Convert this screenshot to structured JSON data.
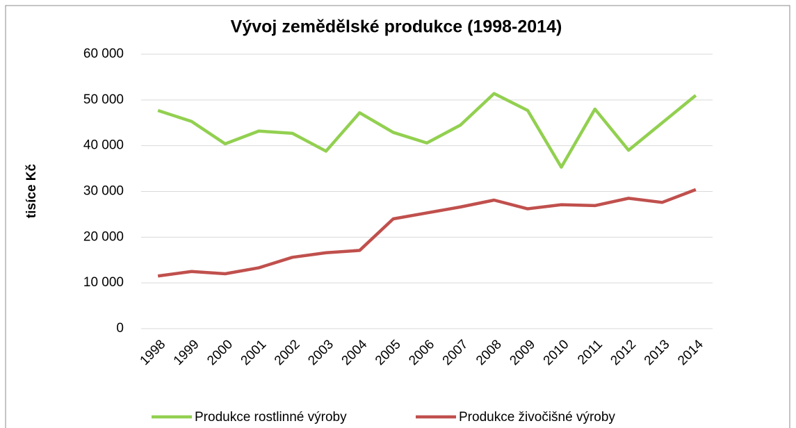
{
  "chart_data": {
    "type": "line",
    "title": "Vývoj zemědělské produkce (1998-2014)",
    "y_label": "tisíce Kč",
    "categories": [
      "1998",
      "1999",
      "2000",
      "2001",
      "2002",
      "2003",
      "2004",
      "2005",
      "2006",
      "2007",
      "2008",
      "2009",
      "2010",
      "2011",
      "2012",
      "2013",
      "2014"
    ],
    "series": [
      {
        "name": "Produkce rostlinné výroby",
        "color": "#92d050",
        "values": [
          47700,
          45300,
          40400,
          43200,
          42700,
          38800,
          47200,
          42900,
          40600,
          44500,
          51400,
          47700,
          35300,
          48000,
          39000,
          45000,
          51000
        ]
      },
      {
        "name": "Produkce živočišné výroby",
        "color": "#c0504d",
        "values": [
          11500,
          12500,
          12000,
          13300,
          15600,
          16600,
          17100,
          24000,
          25300,
          26600,
          28100,
          26200,
          27100,
          26900,
          28500,
          27600,
          30400
        ]
      }
    ],
    "ylim": [
      0,
      60000
    ],
    "yticks": [
      0,
      {
        "value": 10000,
        "label": "10 000"
      },
      {
        "value": 20000,
        "label": "20 000"
      },
      {
        "value": 30000,
        "label": "30 000"
      },
      {
        "value": 40000,
        "label": "40 000"
      },
      {
        "value": 50000,
        "label": "50 000"
      },
      {
        "value": 60000,
        "label": "60 000"
      }
    ],
    "grid": true,
    "legend": "bottom"
  }
}
